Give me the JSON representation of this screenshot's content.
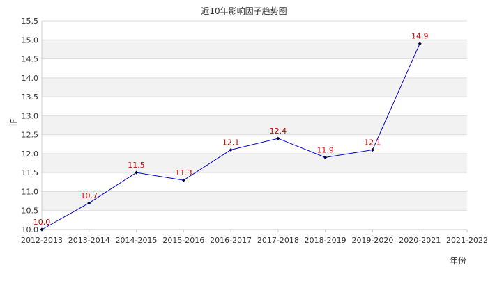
{
  "chart_data": {
    "type": "line",
    "title": "近10年影响因子趋势图",
    "xlabel": "年份",
    "ylabel": "IF",
    "categories": [
      "2012-2013",
      "2013-2014",
      "2014-2015",
      "2015-2016",
      "2016-2017",
      "2017-2018",
      "2018-2019",
      "2019-2020",
      "2020-2021",
      "2021-2022"
    ],
    "series": [
      {
        "values": [
          10.0,
          10.7,
          11.5,
          11.3,
          12.1,
          12.4,
          11.9,
          12.1,
          14.9,
          null
        ]
      }
    ],
    "data_labels": [
      "10.0",
      "10.7",
      "11.5",
      "11.3",
      "12.1",
      "12.4",
      "11.9",
      "12.1",
      "14.9"
    ],
    "y_ticks": [
      "10.0",
      "10.5",
      "11.0",
      "11.5",
      "12.0",
      "12.5",
      "13.0",
      "13.5",
      "14.0",
      "14.5",
      "15.0",
      "15.5"
    ],
    "ylim": [
      10.0,
      15.5
    ],
    "grid": true,
    "legend": "none",
    "colors": {
      "line": "#0000cc",
      "marker": "#000033",
      "data_label": "#cc0000",
      "band": "#f2f2f2",
      "grid": "#dddddd"
    }
  }
}
